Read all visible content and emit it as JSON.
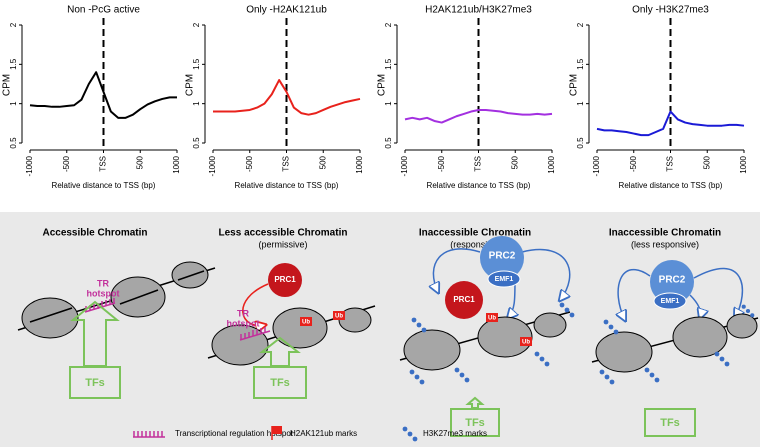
{
  "chart_data": [
    {
      "type": "line",
      "title": "Non -PcG active",
      "x_label": "Relative distance  to TSS (bp)",
      "y_label": "CPM",
      "color": "#000000",
      "x": [
        -1000,
        -900,
        -800,
        -700,
        -600,
        -500,
        -400,
        -300,
        -200,
        -100,
        0,
        100,
        200,
        300,
        400,
        500,
        600,
        700,
        800,
        900,
        1000
      ],
      "values": [
        0.98,
        0.97,
        0.97,
        0.96,
        0.96,
        0.97,
        0.98,
        1.05,
        1.25,
        1.4,
        1.15,
        0.9,
        0.82,
        0.82,
        0.86,
        0.93,
        0.99,
        1.03,
        1.06,
        1.08,
        1.08
      ],
      "xlim": [
        -1000,
        1000
      ],
      "xticks": [
        -1000,
        -500,
        {
          "value": 0,
          "label": "TSS"
        },
        500,
        1000
      ],
      "ylim": [
        0.5,
        2
      ],
      "yticks": [
        0.5,
        1,
        1.5,
        2
      ],
      "vline": 0
    },
    {
      "type": "line",
      "title": "Only -H2AK121ub",
      "x_label": "Relative distance  to TSS (bp)",
      "y_label": "CPM",
      "color": "#e8221c",
      "x": [
        -1000,
        -900,
        -800,
        -700,
        -600,
        -500,
        -400,
        -300,
        -200,
        -100,
        0,
        100,
        200,
        300,
        400,
        500,
        600,
        700,
        800,
        900,
        1000
      ],
      "values": [
        0.9,
        0.9,
        0.9,
        0.9,
        0.91,
        0.92,
        0.95,
        1.0,
        1.12,
        1.3,
        1.15,
        0.95,
        0.88,
        0.86,
        0.88,
        0.92,
        0.96,
        0.99,
        1.02,
        1.04,
        1.06
      ],
      "xlim": [
        -1000,
        1000
      ],
      "xticks": [
        -1000,
        -500,
        {
          "value": 0,
          "label": "TSS"
        },
        500,
        1000
      ],
      "ylim": [
        0.5,
        2
      ],
      "yticks": [
        0.5,
        1,
        1.5,
        2
      ],
      "vline": 0
    },
    {
      "type": "line",
      "title": "H2AK121ub/H3K27me3",
      "x_label": "Relative distance  to TSS (bp)",
      "y_label": "CPM",
      "color": "#a330e0",
      "x": [
        -1000,
        -900,
        -800,
        -700,
        -600,
        -500,
        -400,
        -300,
        -200,
        -100,
        0,
        100,
        200,
        300,
        400,
        500,
        600,
        700,
        800,
        900,
        1000
      ],
      "values": [
        0.8,
        0.82,
        0.8,
        0.82,
        0.78,
        0.76,
        0.8,
        0.84,
        0.87,
        0.9,
        0.92,
        0.92,
        0.91,
        0.9,
        0.88,
        0.87,
        0.86,
        0.86,
        0.87,
        0.86,
        0.87
      ],
      "xlim": [
        -1000,
        1000
      ],
      "xticks": [
        -1000,
        -500,
        {
          "value": 0,
          "label": "TSS"
        },
        500,
        1000
      ],
      "ylim": [
        0.5,
        2
      ],
      "yticks": [
        0.5,
        1,
        1.5,
        2
      ],
      "vline": 0
    },
    {
      "type": "line",
      "title": "Only -H3K27me3",
      "x_label": "Relative distance  to TSS (bp)",
      "y_label": "CPM",
      "color": "#1a1ad6",
      "x": [
        -1000,
        -900,
        -800,
        -700,
        -600,
        -500,
        -400,
        -300,
        -200,
        -100,
        0,
        100,
        200,
        300,
        400,
        500,
        600,
        700,
        800,
        900,
        1000
      ],
      "values": [
        0.68,
        0.66,
        0.66,
        0.65,
        0.64,
        0.62,
        0.6,
        0.6,
        0.64,
        0.68,
        0.9,
        0.8,
        0.76,
        0.74,
        0.73,
        0.72,
        0.72,
        0.72,
        0.73,
        0.73,
        0.72
      ],
      "xlim": [
        -1000,
        1000
      ],
      "xticks": [
        -1000,
        -500,
        {
          "value": 0,
          "label": "TSS"
        },
        500,
        1000
      ],
      "ylim": [
        0.5,
        2
      ],
      "yticks": [
        0.5,
        1,
        1.5,
        2
      ],
      "vline": 0
    }
  ],
  "diagram": {
    "panels": [
      {
        "title": "Accessible Chromatin",
        "tr": "TR",
        "hotspot": "hotspot",
        "tfs": "TFs"
      },
      {
        "title": "Less accessible Chromatin",
        "subtitle": "(permissive)",
        "prc1": "PRC1",
        "tr": "TR",
        "hotspot": "hotspot",
        "ub": [
          "Ub",
          "Ub"
        ],
        "tfs": "TFs"
      },
      {
        "title": "Inaccessible Chromatin",
        "subtitle": "(responsive)",
        "prc2": "PRC2",
        "emf1": "EMF1",
        "prc1": "PRC1",
        "ub": [
          "Ub",
          "Ub"
        ],
        "tfs": "TFs"
      },
      {
        "title": "Inaccessible Chromatin",
        "subtitle": "(less responsive)",
        "prc2": "PRC2",
        "emf1": "EMF1",
        "tfs": "TFs"
      }
    ],
    "legend": [
      "Transcriptional regulation hotspot",
      "H2AK121ub marks",
      "H3K27me3 marks"
    ]
  }
}
